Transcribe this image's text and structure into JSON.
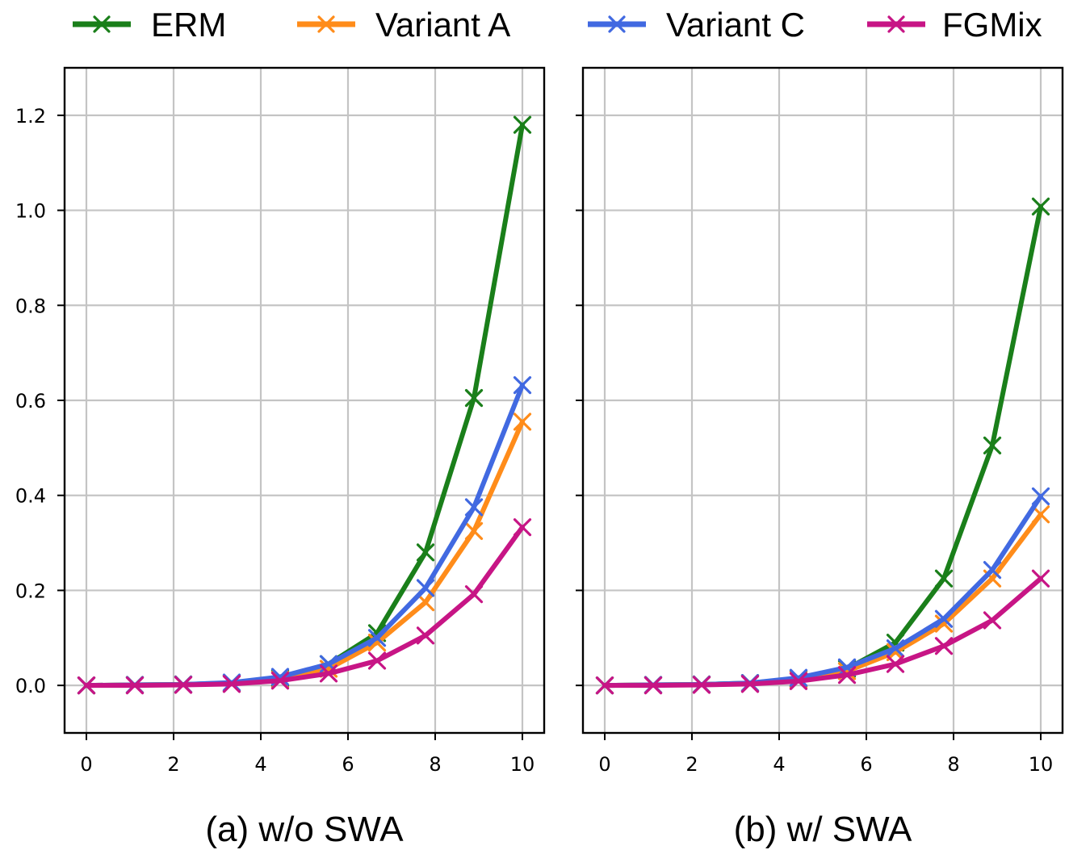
{
  "legend": [
    {
      "label": "ERM",
      "color": "#1a7f1a"
    },
    {
      "label": "Variant A",
      "color": "#ff8c1a"
    },
    {
      "label": "Variant C",
      "color": "#4169e1"
    },
    {
      "label": "FGMix",
      "color": "#c71585"
    }
  ],
  "chart_data": [
    {
      "type": "line",
      "title": "",
      "caption": "(a) w/o SWA",
      "xlabel": "",
      "ylabel": "",
      "xlim": [
        -0.5,
        10.5
      ],
      "ylim": [
        -0.1,
        1.3
      ],
      "xticks": [
        0,
        2,
        4,
        6,
        8,
        10
      ],
      "xtick_labels": [
        "0",
        "2",
        "4",
        "6",
        "8",
        "10"
      ],
      "yticks": [
        0.0,
        0.2,
        0.4,
        0.6,
        0.8,
        1.0,
        1.2
      ],
      "ytick_labels": [
        "0.0",
        "0.2",
        "0.4",
        "0.6",
        "0.8",
        "1.0",
        "1.2"
      ],
      "grid": true,
      "x": [
        0,
        1.111,
        2.222,
        3.333,
        4.444,
        5.556,
        6.667,
        7.778,
        8.889,
        10
      ],
      "series": [
        {
          "name": "ERM",
          "color": "#1a7f1a",
          "values": [
            0.0,
            0.001,
            0.002,
            0.005,
            0.015,
            0.045,
            0.11,
            0.28,
            0.605,
            1.18
          ]
        },
        {
          "name": "Variant A",
          "color": "#ff8c1a",
          "values": [
            0.0,
            0.001,
            0.002,
            0.004,
            0.012,
            0.035,
            0.09,
            0.175,
            0.325,
            0.555
          ]
        },
        {
          "name": "Variant C",
          "color": "#4169e1",
          "values": [
            0.0,
            0.001,
            0.002,
            0.006,
            0.018,
            0.045,
            0.1,
            0.205,
            0.375,
            0.632
          ]
        },
        {
          "name": "FGMix",
          "color": "#c71585",
          "values": [
            0.0,
            0.0,
            0.001,
            0.003,
            0.01,
            0.025,
            0.052,
            0.105,
            0.192,
            0.333
          ]
        }
      ]
    },
    {
      "type": "line",
      "title": "",
      "caption": "(b) w/ SWA",
      "xlabel": "",
      "ylabel": "",
      "xlim": [
        -0.5,
        10.5
      ],
      "ylim": [
        -0.1,
        1.3
      ],
      "xticks": [
        0,
        2,
        4,
        6,
        8,
        10
      ],
      "xtick_labels": [
        "0",
        "2",
        "4",
        "6",
        "8",
        "10"
      ],
      "yticks": [
        0.0,
        0.2,
        0.4,
        0.6,
        0.8,
        1.0,
        1.2
      ],
      "ytick_labels": [],
      "grid": true,
      "x": [
        0,
        1.111,
        2.222,
        3.333,
        4.444,
        5.556,
        6.667,
        7.778,
        8.889,
        10
      ],
      "series": [
        {
          "name": "ERM",
          "color": "#1a7f1a",
          "values": [
            0.0,
            0.001,
            0.002,
            0.005,
            0.014,
            0.035,
            0.09,
            0.225,
            0.505,
            1.008
          ]
        },
        {
          "name": "Variant A",
          "color": "#ff8c1a",
          "values": [
            0.0,
            0.001,
            0.002,
            0.004,
            0.012,
            0.03,
            0.07,
            0.13,
            0.225,
            0.36
          ]
        },
        {
          "name": "Variant C",
          "color": "#4169e1",
          "values": [
            0.0,
            0.001,
            0.002,
            0.005,
            0.016,
            0.038,
            0.078,
            0.14,
            0.243,
            0.398
          ]
        },
        {
          "name": "FGMix",
          "color": "#c71585",
          "values": [
            0.0,
            0.0,
            0.001,
            0.003,
            0.009,
            0.022,
            0.045,
            0.083,
            0.137,
            0.225
          ]
        }
      ]
    }
  ]
}
